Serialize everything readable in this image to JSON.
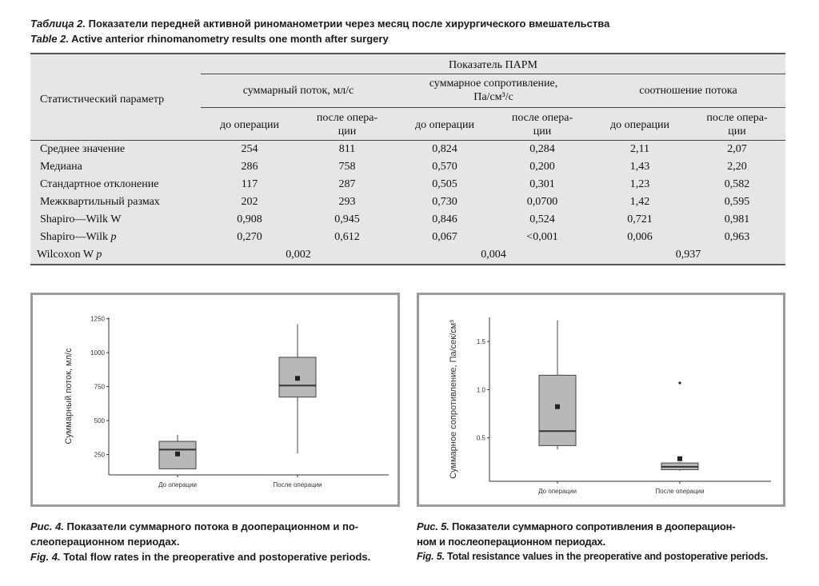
{
  "table": {
    "caption_ru_label": "Таблица 2.",
    "caption_ru_text": "Показатели передней активной риноманометрии через месяц после хирургического вмешательства",
    "caption_en_label": "Table 2.",
    "caption_en_text": "Active anterior rhinomanometry results one month after surgery",
    "header": {
      "stat_param": "Статистический параметр",
      "group": "Показатель ПАРМ",
      "col_groups": [
        "суммарный поток, мл/с",
        "суммарное сопротивление,",
        "Па/см³/с",
        "соотношение потока"
      ],
      "before": "до операции",
      "after_1": "после опера-",
      "after_2": "ции"
    },
    "rows": [
      {
        "label": "Среднее значение",
        "v": [
          "254",
          "811",
          "0,824",
          "0,284",
          "2,11",
          "2,07"
        ]
      },
      {
        "label": "Медиана",
        "v": [
          "286",
          "758",
          "0,570",
          "0,200",
          "1,43",
          "2,20"
        ]
      },
      {
        "label": "Стандартное отклонение",
        "v": [
          "117",
          "287",
          "0,505",
          "0,301",
          "1,23",
          "0,582"
        ]
      },
      {
        "label": "Межквартильный размах",
        "v": [
          "202",
          "293",
          "0,730",
          "0,0700",
          "1,42",
          "0,595"
        ]
      },
      {
        "label": "Shapiro—Wilk W",
        "v": [
          "0,908",
          "0,945",
          "0,846",
          "0,524",
          "0,721",
          "0,981"
        ]
      },
      {
        "label_a": "Shapiro—Wilk ",
        "label_b": "p",
        "v": [
          "0,270",
          "0,612",
          "0,067",
          "<0,001",
          "0,006",
          "0,963"
        ]
      }
    ],
    "wilcoxon": {
      "label_a": "Wilcoxon W ",
      "label_b": "p",
      "v": [
        "0,002",
        "0,004",
        "0,937"
      ]
    }
  },
  "chart_data": [
    {
      "type": "boxplot",
      "ylabel": "Суммарный поток, мл/с",
      "ylim": [
        100,
        1260
      ],
      "yticks": [
        250,
        500,
        750,
        1000,
        1250
      ],
      "categories": [
        "До операции",
        "После операции"
      ],
      "boxes": [
        {
          "whisker_low": 140,
          "q1": 145,
          "median": 286,
          "q3": 347,
          "whisker_high": 395,
          "mean": 254,
          "outliers": []
        },
        {
          "whisker_low": 258,
          "q1": 673,
          "median": 758,
          "q3": 966,
          "whisker_high": 1210,
          "mean": 811,
          "outliers": []
        }
      ]
    },
    {
      "type": "boxplot",
      "ylabel": "Суммарное сопротивление, Па/сек/см³",
      "ylim": [
        0.05,
        1.75
      ],
      "yticks": [
        0.5,
        1.0,
        1.5
      ],
      "ytick_labels": [
        "0.5",
        "1.0",
        "1.5"
      ],
      "categories": [
        "До операции",
        "После операции"
      ],
      "boxes": [
        {
          "whisker_low": 0.38,
          "q1": 0.42,
          "median": 0.57,
          "q3": 1.15,
          "whisker_high": 1.72,
          "mean": 0.824,
          "outliers": []
        },
        {
          "whisker_low": 0.16,
          "q1": 0.17,
          "median": 0.2,
          "q3": 0.24,
          "whisker_high": 0.25,
          "mean": 0.284,
          "outliers": [
            1.07
          ]
        }
      ]
    }
  ],
  "fig4": {
    "ru_label": "Рис. 4.",
    "ru_text_1": "Показатели суммарного потока в дооперационном и по-",
    "ru_text_2": "слеоперационном периодах.",
    "en_label": "Fig. 4.",
    "en_text": "Total flow rates in the preoperative and postoperative periods."
  },
  "fig5": {
    "ru_label": "Рис. 5.",
    "ru_text_1": "Показатели суммарного сопротивления в дооперацион-",
    "ru_text_2": "ном и послеоперационном периодах.",
    "en_label": "Fig. 5.",
    "en_text": "Total resistance values in the preoperative and postoperative periods."
  }
}
